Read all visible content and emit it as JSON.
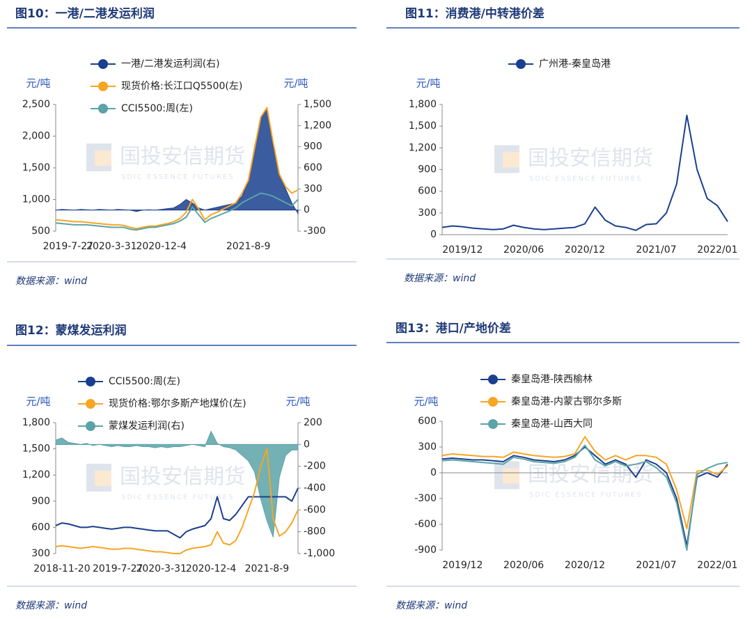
{
  "watermark": {
    "cn": "国投安信期货",
    "en": "SDIC ESSENCE FUTURES"
  },
  "chart_data": [
    {
      "type": "line",
      "title": "图10：一港/二港发运利润",
      "source": "数据来源：wind",
      "ylabel": "元/吨",
      "y2label": "元/吨",
      "categories": [
        null,
        null,
        "2019-7-27",
        null,
        null,
        null,
        null,
        null,
        null,
        "2020-3-31",
        null,
        null,
        null,
        null,
        null,
        null,
        null,
        "2020-12-4",
        null,
        null,
        null,
        null,
        null,
        null,
        null,
        null,
        null,
        null,
        null,
        null,
        null,
        "2021-8-9",
        null,
        null,
        null,
        null,
        null,
        null,
        null,
        null
      ],
      "ylim": [
        500,
        2500
      ],
      "yticks": [
        500,
        {
          "value": 1000,
          "label": "1,000"
        },
        {
          "value": 1500,
          "label": "1,500"
        },
        {
          "value": 2000,
          "label": "2,000"
        },
        {
          "value": 2500,
          "label": "2,500"
        }
      ],
      "y2lim": [
        -300,
        1500
      ],
      "y2ticks": [
        -300,
        0,
        300,
        600,
        900,
        {
          "value": 1200,
          "label": "1,200"
        },
        {
          "value": 1500,
          "label": "1,500"
        }
      ],
      "series": [
        {
          "name": "一港/二港发运利润(右)",
          "color": "#1a3f8f",
          "axis": "y2",
          "area": true,
          "values": [
            0,
            10,
            5,
            0,
            10,
            5,
            0,
            10,
            5,
            0,
            10,
            5,
            0,
            -20,
            0,
            5,
            0,
            10,
            20,
            30,
            80,
            150,
            100,
            30,
            0,
            20,
            40,
            60,
            80,
            100,
            200,
            400,
            900,
            1300,
            1450,
            900,
            500,
            300,
            100,
            -50
          ]
        },
        {
          "name": "现货价格:长江口Q5500(左)",
          "color": "#f5a623",
          "values": [
            680,
            670,
            660,
            650,
            650,
            640,
            630,
            620,
            610,
            600,
            600,
            590,
            560,
            540,
            560,
            580,
            580,
            600,
            620,
            650,
            700,
            800,
            1000,
            850,
            680,
            760,
            800,
            850,
            900,
            950,
            1100,
            1300,
            1800,
            2300,
            2450,
            1900,
            1400,
            1200,
            1100,
            1150
          ]
        },
        {
          "name": "CCI5500:周(左)",
          "color": "#5ba3a8",
          "values": [
            630,
            620,
            610,
            600,
            600,
            600,
            590,
            580,
            570,
            560,
            560,
            560,
            530,
            520,
            540,
            560,
            560,
            580,
            600,
            620,
            660,
            720,
            880,
            760,
            640,
            700,
            740,
            780,
            820,
            870,
            950,
            1000,
            1050,
            1100,
            1080,
            1050,
            1000,
            950,
            900,
            1000
          ]
        }
      ]
    },
    {
      "type": "line",
      "title": "图11：消费港/中转港价差",
      "source": "数据来源：wind",
      "ylabel": "元/吨",
      "categories": [
        null,
        null,
        "2019/12",
        null,
        null,
        null,
        null,
        null,
        "2020/06",
        null,
        null,
        null,
        null,
        null,
        "2020/12",
        null,
        null,
        null,
        null,
        null,
        null,
        "2021/07",
        null,
        null,
        null,
        null,
        null,
        "2022/01",
        null
      ],
      "ylim": [
        0,
        1800
      ],
      "yticks": [
        0,
        300,
        600,
        900,
        {
          "value": 1200,
          "label": "1,200"
        },
        {
          "value": 1500,
          "label": "1,500"
        },
        {
          "value": 1800,
          "label": "1,800"
        }
      ],
      "series": [
        {
          "name": "广州港-秦皇岛港",
          "color": "#1a3f8f",
          "values": [
            100,
            120,
            110,
            90,
            80,
            70,
            80,
            130,
            100,
            80,
            70,
            80,
            90,
            100,
            150,
            380,
            200,
            120,
            100,
            60,
            140,
            150,
            300,
            700,
            1650,
            900,
            500,
            400,
            180
          ]
        }
      ]
    },
    {
      "type": "line",
      "title": "图12：蒙煤发运利润",
      "source": "数据来源：wind",
      "ylabel": "元/吨",
      "y2label": "元/吨",
      "categories": [
        null,
        "2018-11-20",
        null,
        null,
        null,
        null,
        null,
        null,
        null,
        null,
        "2019-7-27",
        null,
        null,
        null,
        null,
        null,
        null,
        "2020-3-31",
        null,
        null,
        null,
        null,
        null,
        null,
        null,
        "2020-12-4",
        null,
        null,
        null,
        null,
        null,
        null,
        null,
        null,
        "2021-8-9",
        null,
        null,
        null,
        null,
        null
      ],
      "ylim": [
        300,
        1800
      ],
      "yticks": [
        300,
        600,
        900,
        {
          "value": 1200,
          "label": "1,200"
        },
        {
          "value": 1500,
          "label": "1,500"
        },
        {
          "value": 1800,
          "label": "1,800"
        }
      ],
      "y2lim": [
        -1000,
        200
      ],
      "y2ticks": [
        {
          "value": -1000,
          "label": "-1,000"
        },
        -800,
        -600,
        -400,
        -200,
        0,
        200
      ],
      "series": [
        {
          "name": "CCI5500:周(左)",
          "color": "#1a3f8f",
          "values": [
            620,
            650,
            640,
            620,
            600,
            600,
            610,
            600,
            590,
            580,
            590,
            600,
            600,
            590,
            580,
            570,
            560,
            560,
            560,
            520,
            480,
            550,
            580,
            600,
            620,
            700,
            950,
            700,
            680,
            750,
            850,
            950,
            950,
            950,
            950,
            950,
            950,
            950,
            900,
            1050
          ]
        },
        {
          "name": "现货价格:鄂尔多斯产地煤价(左)",
          "color": "#f5a623",
          "values": [
            380,
            390,
            380,
            370,
            360,
            370,
            380,
            370,
            360,
            350,
            350,
            360,
            360,
            350,
            340,
            330,
            320,
            320,
            310,
            300,
            300,
            340,
            360,
            370,
            380,
            400,
            550,
            420,
            400,
            450,
            600,
            800,
            1000,
            1300,
            1500,
            700,
            500,
            550,
            650,
            800
          ]
        },
        {
          "name": "蒙煤发运利润(右)",
          "color": "#5ba3a8",
          "axis": "y2",
          "area": true,
          "values": [
            40,
            60,
            20,
            10,
            0,
            10,
            -10,
            0,
            -10,
            -20,
            -10,
            -20,
            -20,
            -10,
            -20,
            -20,
            -30,
            -20,
            -30,
            -20,
            -20,
            -10,
            0,
            -10,
            -20,
            120,
            10,
            -20,
            -30,
            -50,
            -100,
            -150,
            -250,
            -500,
            -700,
            -850,
            -300,
            -100,
            -50,
            -50
          ]
        }
      ]
    },
    {
      "type": "line",
      "title": "图13：港口/产地价差",
      "source": "数据来源：wind",
      "ylabel": "元/吨",
      "categories": [
        null,
        null,
        "2019/12",
        null,
        null,
        null,
        null,
        null,
        "2020/06",
        null,
        null,
        null,
        null,
        null,
        "2020/12",
        null,
        null,
        null,
        null,
        null,
        null,
        "2021/07",
        null,
        null,
        null,
        null,
        null,
        "2022/01",
        null
      ],
      "ylim": [
        -900,
        600
      ],
      "yticks": [
        -900,
        -600,
        -300,
        0,
        300,
        600
      ],
      "series": [
        {
          "name": "秦皇岛港-陕西榆林",
          "color": "#1a3f8f",
          "values": [
            160,
            170,
            160,
            150,
            150,
            140,
            130,
            200,
            180,
            150,
            140,
            130,
            150,
            200,
            300,
            200,
            100,
            150,
            100,
            -50,
            150,
            100,
            0,
            -300,
            -850,
            -50,
            0,
            -50,
            100
          ]
        },
        {
          "name": "秦皇岛港-内蒙古鄂尔多斯",
          "color": "#f5a623",
          "values": [
            200,
            220,
            210,
            200,
            190,
            190,
            180,
            240,
            220,
            200,
            190,
            180,
            190,
            220,
            420,
            250,
            150,
            200,
            150,
            200,
            200,
            180,
            100,
            -200,
            -650,
            20,
            30,
            -20,
            80
          ]
        },
        {
          "name": "秦皇岛港-山西大同",
          "color": "#5ba3a8",
          "values": [
            140,
            150,
            140,
            130,
            120,
            110,
            100,
            180,
            160,
            130,
            120,
            110,
            130,
            180,
            320,
            150,
            80,
            130,
            80,
            100,
            130,
            60,
            -50,
            -350,
            -900,
            -20,
            50,
            100,
            120
          ]
        }
      ]
    }
  ]
}
